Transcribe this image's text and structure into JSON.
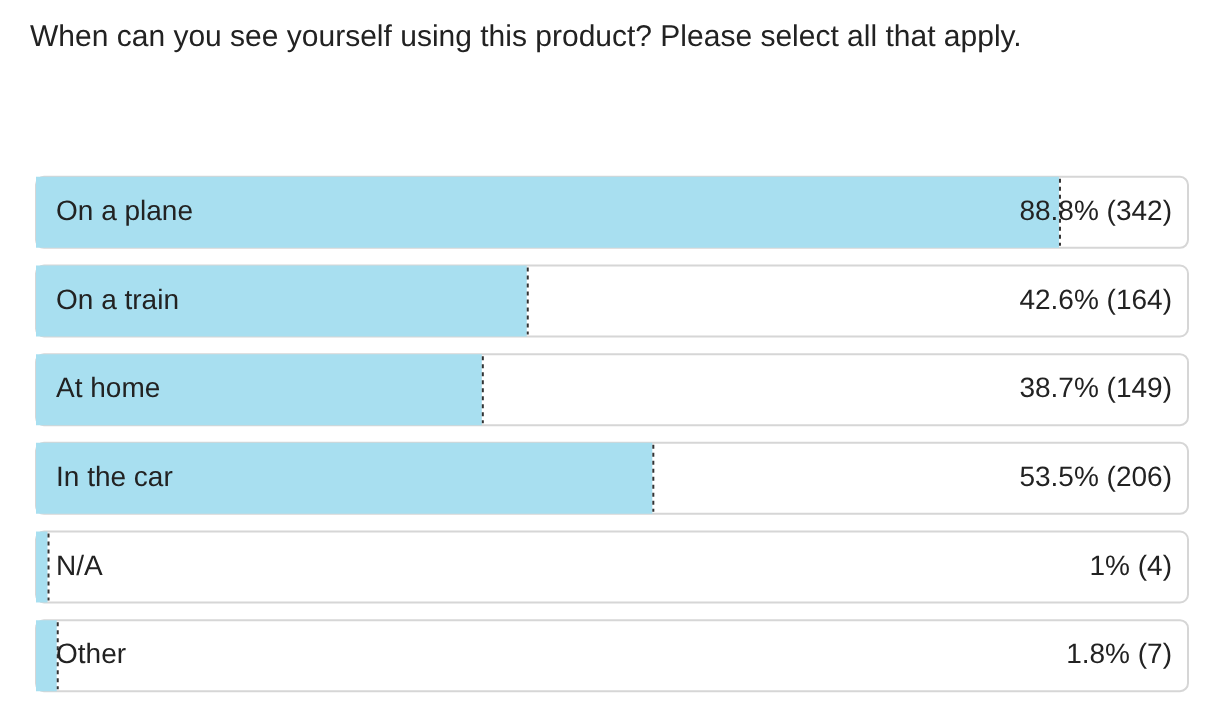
{
  "chart_data": {
    "type": "bar",
    "orientation": "horizontal",
    "title": "When can you see yourself using this product? Please select all that apply.",
    "categories": [
      "On a plane",
      "On a train",
      "At home",
      "In the car",
      "N/A",
      "Other"
    ],
    "values": [
      88.8,
      42.6,
      38.7,
      53.5,
      1,
      1.8
    ],
    "value_labels": [
      "88.8% (342)",
      "42.6% (164)",
      "38.7% (149)",
      "53.5% (206)",
      "1% (4)",
      "1.8% (7)"
    ],
    "color": "#a8dff0",
    "xlim": [
      0,
      100
    ],
    "tick_labels": "y",
    "legend": false
  }
}
